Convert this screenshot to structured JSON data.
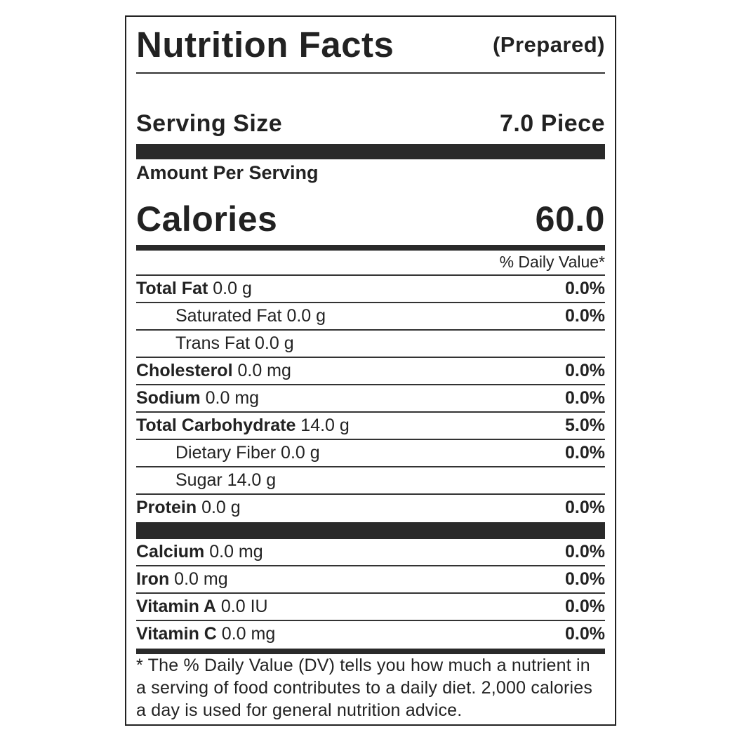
{
  "header": {
    "title": "Nutrition Facts",
    "subtitle": "(Prepared)"
  },
  "serving": {
    "label": "Serving Size",
    "value": "7.0 Piece"
  },
  "amount_per_serving": "Amount Per Serving",
  "calories": {
    "label": "Calories",
    "value": "60.0"
  },
  "daily_value_header": "% Daily Value*",
  "nutrients": [
    {
      "name": "Total Fat",
      "amount": "0.0 g",
      "dv": "0.0%"
    },
    {
      "name": "Saturated Fat",
      "amount": "0.0 g",
      "dv": "0.0%",
      "sub": true
    },
    {
      "name": "Trans Fat",
      "amount": "0.0 g",
      "sub": true
    },
    {
      "name": "Cholesterol",
      "amount": "0.0 mg",
      "dv": "0.0%"
    },
    {
      "name": "Sodium",
      "amount": "0.0 mg",
      "dv": "0.0%"
    },
    {
      "name": "Total Carbohydrate",
      "amount": "14.0 g",
      "dv": "5.0%"
    },
    {
      "name": "Dietary Fiber",
      "amount": "0.0 g",
      "dv": "0.0%",
      "sub": true
    },
    {
      "name": "Sugar",
      "amount": "14.0 g",
      "sub": true
    },
    {
      "name": "Protein",
      "amount": "0.0 g",
      "dv": "0.0%"
    }
  ],
  "vitamins": [
    {
      "name": "Calcium",
      "amount": "0.0 mg",
      "dv": "0.0%"
    },
    {
      "name": "Iron",
      "amount": "0.0 mg",
      "dv": "0.0%"
    },
    {
      "name": "Vitamin A",
      "amount": "0.0 IU",
      "dv": "0.0%"
    },
    {
      "name": "Vitamin C",
      "amount": "0.0 mg",
      "dv": "0.0%"
    }
  ],
  "footnote": "* The % Daily Value (DV) tells you how much a nutrient in a serving of food contributes to a daily diet. 2,000 calories a day is used for general nutrition advice."
}
